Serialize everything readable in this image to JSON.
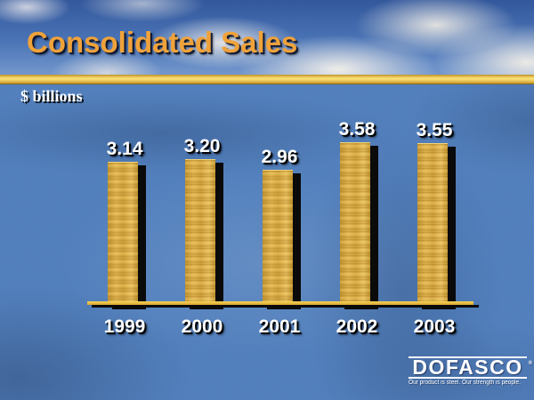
{
  "slide": {
    "title": "Consolidated Sales",
    "units_label": "$ billions"
  },
  "chart_data": {
    "type": "bar",
    "title": "Consolidated Sales",
    "ylabel": "$ billions",
    "categories": [
      "1999",
      "2000",
      "2001",
      "2002",
      "2003"
    ],
    "values": [
      3.14,
      3.2,
      2.96,
      3.58,
      3.55
    ],
    "value_labels": [
      "3.14",
      "3.20",
      "2.96",
      "3.58",
      "3.55"
    ],
    "ylim": [
      0,
      3.9
    ],
    "grid": false,
    "legend": "none",
    "bar_color": "#d8a840",
    "bar_texture": "wood-grain",
    "label_color": "#ffffff",
    "axis_color": "#e8b62e"
  },
  "logo": {
    "brand": "DOFASCO",
    "mark": "®",
    "tagline": "Our product is steel. Our strength is people."
  }
}
